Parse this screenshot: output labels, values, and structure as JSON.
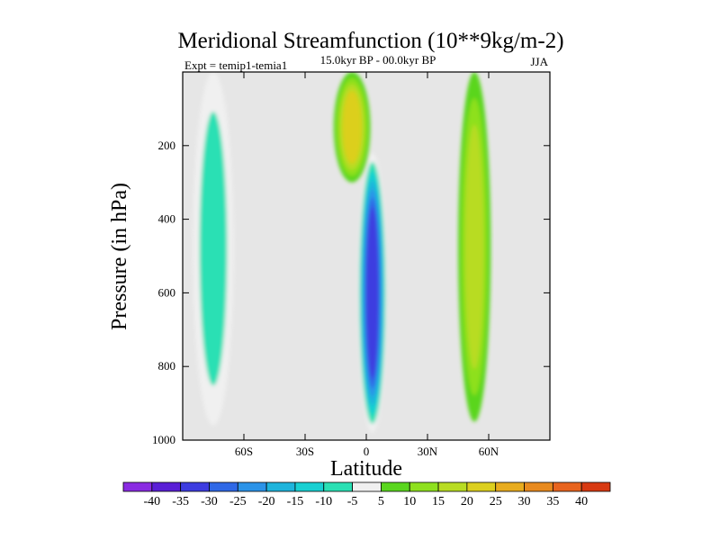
{
  "chart_data": {
    "type": "heatmap",
    "title": "Meridional Streamfunction (10**9kg/m-2)",
    "subtitle": "15.0kyr BP - 00.0kyr BP",
    "left_label": "Expt = temip1-temia1",
    "season": "JJA",
    "xlabel": "Latitude",
    "ylabel": "Pressure (in hPa)",
    "x_range": [
      -90,
      90
    ],
    "y_range": [
      0,
      1000
    ],
    "x_ticks": [
      {
        "value": -60,
        "label": "60S"
      },
      {
        "value": -30,
        "label": "30S"
      },
      {
        "value": 0,
        "label": "0"
      },
      {
        "value": 30,
        "label": "30N"
      },
      {
        "value": 60,
        "label": "60N"
      }
    ],
    "y_ticks": [
      {
        "value": 200,
        "label": "200"
      },
      {
        "value": 400,
        "label": "400"
      },
      {
        "value": 600,
        "label": "600"
      },
      {
        "value": 800,
        "label": "800"
      },
      {
        "value": 1000,
        "label": "1000"
      }
    ],
    "colorbar": {
      "levels": [
        -40,
        -35,
        -30,
        -25,
        -20,
        -15,
        -10,
        -5,
        5,
        10,
        15,
        20,
        25,
        30,
        35,
        40
      ],
      "labels": [
        "-40",
        "-35",
        "-30",
        "-25",
        "-20",
        "-15",
        "-10",
        "-5",
        "5",
        "10",
        "15",
        "20",
        "25",
        "30",
        "35",
        "40"
      ],
      "colors": [
        "#8a2be2",
        "#5a1fd6",
        "#3d3ce0",
        "#2f68e6",
        "#2b93e8",
        "#1eb4dc",
        "#18d0d2",
        "#2ae0b4",
        "#f0f0f0",
        "#5ad61e",
        "#8ee01e",
        "#b8dc22",
        "#dccf1e",
        "#e8ac1e",
        "#e88a1e",
        "#e8641e",
        "#d83a12"
      ],
      "neutral_color": "#e6e6e6"
    },
    "features": [
      {
        "name": "southern-polar-cell",
        "lat_center": -75,
        "lat_halfwidth": 10,
        "p_top": 0,
        "p_bottom": 960,
        "value": -12
      },
      {
        "name": "equatorial-negative-cell",
        "lat_center": 3,
        "lat_halfwidth": 7,
        "p_top": 220,
        "p_bottom": 980,
        "value": -36
      },
      {
        "name": "upper-tropical-positive",
        "lat_center": -7,
        "lat_halfwidth": 9,
        "p_top": 0,
        "p_bottom": 300,
        "value": 22
      },
      {
        "name": "mid-latitude-positive",
        "lat_center": 53,
        "lat_halfwidth": 8,
        "p_top": 0,
        "p_bottom": 950,
        "value": 17
      }
    ]
  }
}
